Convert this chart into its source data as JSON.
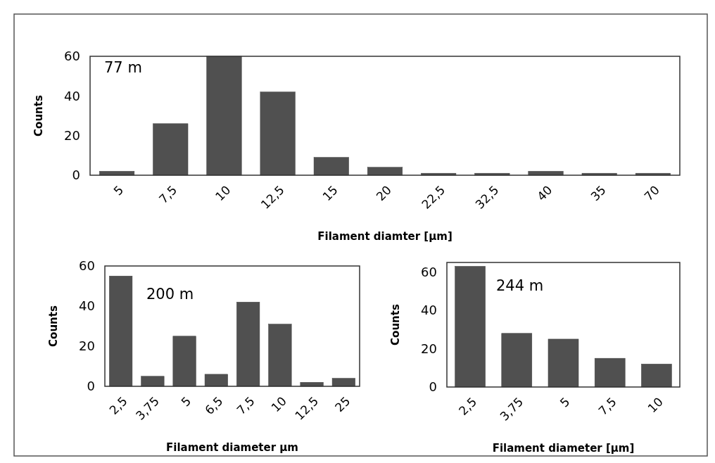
{
  "chart_data": [
    {
      "type": "bar",
      "categories": [
        "5",
        "7,5",
        "10",
        "12,5",
        "15",
        "20",
        "22,5",
        "32,5",
        "40",
        "35",
        "70"
      ],
      "values": [
        2,
        26,
        60,
        42,
        9,
        4,
        1,
        1,
        2,
        1,
        1
      ],
      "color": "#505050",
      "ylim": [
        0,
        60
      ],
      "yticks": [
        0,
        20,
        40,
        60
      ],
      "xlabel": "Filament diamter [µm]",
      "ylabel": "Counts",
      "annotations": [
        "77 m"
      ]
    },
    {
      "type": "bar",
      "categories": [
        "2,5",
        "3,75",
        "5",
        "6,5",
        "7,5",
        "10",
        "12,5",
        "25"
      ],
      "values": [
        55,
        5,
        25,
        6,
        42,
        31,
        2,
        4
      ],
      "color": "#505050",
      "ylim": [
        0,
        60
      ],
      "yticks": [
        0,
        20,
        40,
        60
      ],
      "xlabel": "Filament diameter µm",
      "ylabel": "Counts",
      "annotations": [
        "200 m"
      ]
    },
    {
      "type": "bar",
      "categories": [
        "2,5",
        "3,75",
        "5",
        "7,5",
        "10"
      ],
      "values": [
        63,
        28,
        25,
        15,
        12
      ],
      "color": "#505050",
      "ylim": [
        0,
        65
      ],
      "yticks": [
        0,
        20,
        40,
        60
      ],
      "xlabel": "Filament diameter [µm]",
      "ylabel": "Counts",
      "annotations": [
        "244 m"
      ]
    }
  ]
}
